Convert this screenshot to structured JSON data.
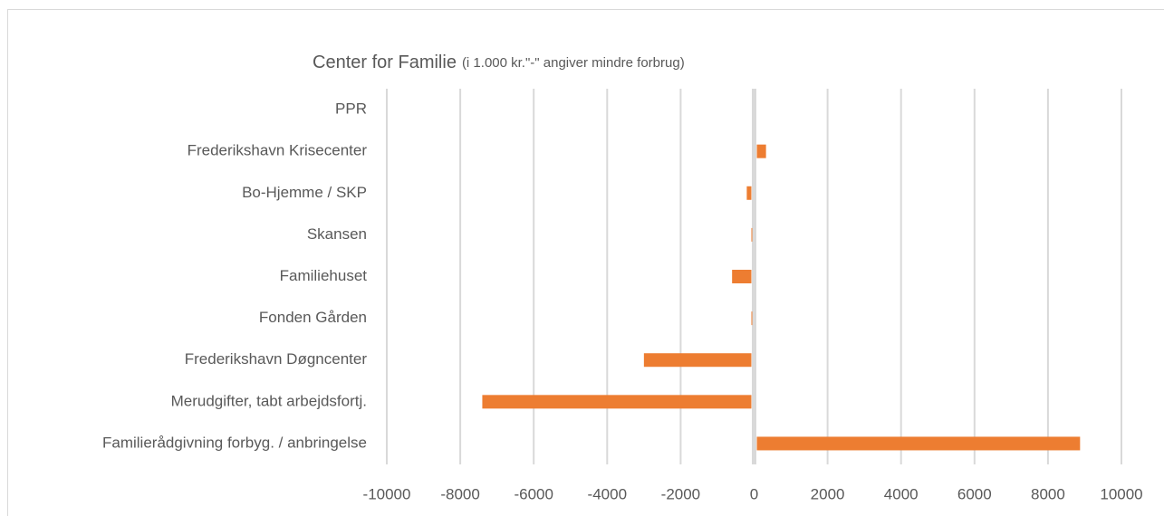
{
  "chart_data": {
    "type": "bar",
    "orientation": "horizontal",
    "title": "Center  for  Familie",
    "subtitle": "(i 1.000 kr.\"-\" angiver mindre  forbrug)",
    "categories": [
      "PPR",
      "Frederikshavn Krisecenter",
      "Bo-Hjemme / SKP",
      "Skansen",
      "Familiehuset",
      "Fonden Gården",
      "Frederikshavn Døgncenter",
      "Merudgifter, tabt arbejdsfortj.",
      "Familierådgivning forbyg. / anbringelse"
    ],
    "values": [
      0,
      250,
      -200,
      -50,
      -600,
      -50,
      -3000,
      -7400,
      8800
    ],
    "color": "#ed7d31",
    "xlim": [
      -10000,
      10000
    ],
    "xticks": [
      -10000,
      -8000,
      -6000,
      -4000,
      -2000,
      0,
      2000,
      4000,
      6000,
      8000,
      10000
    ],
    "grid": true
  }
}
